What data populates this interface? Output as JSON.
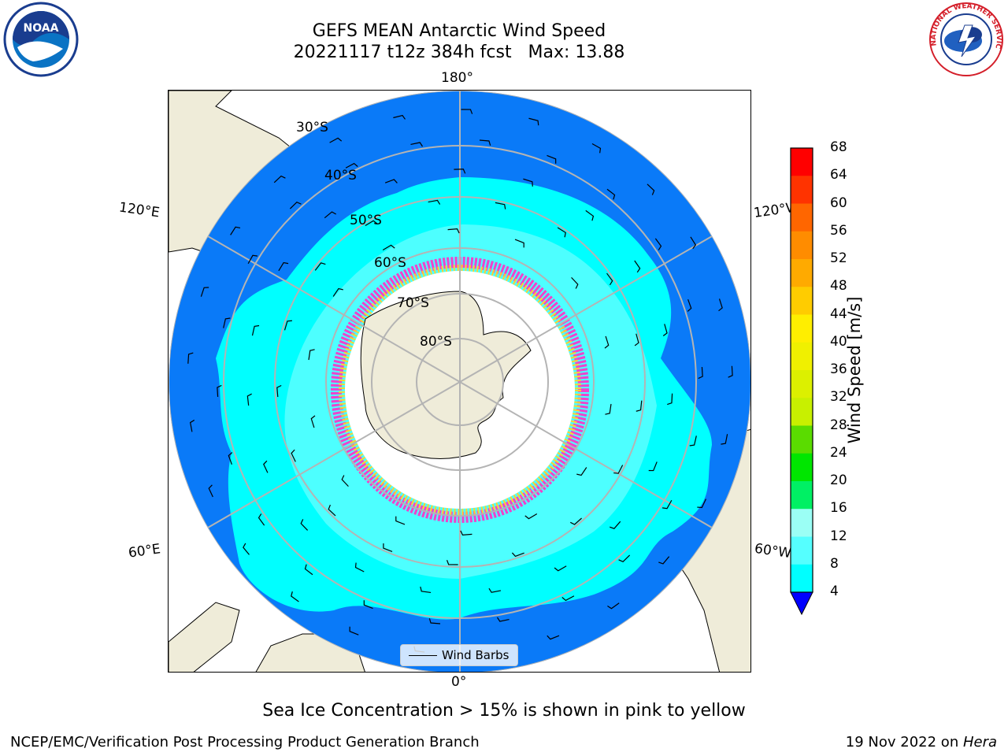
{
  "title": {
    "line1": "GEFS MEAN Antarctic Wind Speed",
    "line2": "20221117 t12z 384h fcst   Max: 13.88"
  },
  "map": {
    "longitude_labels": {
      "top": "180°",
      "bottom": "0°",
      "upper_left": "120°E",
      "upper_right": "120°W",
      "lower_left": "60°E",
      "lower_right": "60°W"
    },
    "latitude_labels": [
      "30°S",
      "40°S",
      "50°S",
      "60°S",
      "70°S",
      "80°S"
    ],
    "legend_label": "Wind Barbs",
    "colors": {
      "ocean_calm": "#0a7af8",
      "wind_8_12": "#00ffff",
      "wind_12_16": "#4dffff",
      "land": "#efecd9",
      "ice_edge_pink": "#ee44cc",
      "ice_edge_yellow": "#ffd22e",
      "grid": "#b4b4b4"
    }
  },
  "colorbar": {
    "label": "Wind Speed [m/s]",
    "ticks": [
      "68",
      "64",
      "60",
      "56",
      "52",
      "48",
      "44",
      "40",
      "36",
      "32",
      "28",
      "24",
      "20",
      "16",
      "12",
      "8",
      "4"
    ],
    "bin_colors": [
      "#ff0000",
      "#ff3300",
      "#ff6600",
      "#ff8c00",
      "#ffaa00",
      "#ffcc00",
      "#ffee00",
      "#f0f000",
      "#dcf000",
      "#c8f000",
      "#5adc00",
      "#00e600",
      "#00f064",
      "#9bfff5",
      "#55ffff",
      "#00ffff",
      "#0a7af8"
    ],
    "extend_color": "#0000ff"
  },
  "caption": "Sea Ice Concentration > 15% is shown in pink to yellow",
  "footer": {
    "left": "NCEP/EMC/Verification Post Processing Product Generation Branch",
    "right_date": "19 Nov 2022 on ",
    "right_machine": "Hera"
  },
  "logos": {
    "left": "NOAA",
    "right": "NATIONAL WEATHER SERVICE"
  }
}
